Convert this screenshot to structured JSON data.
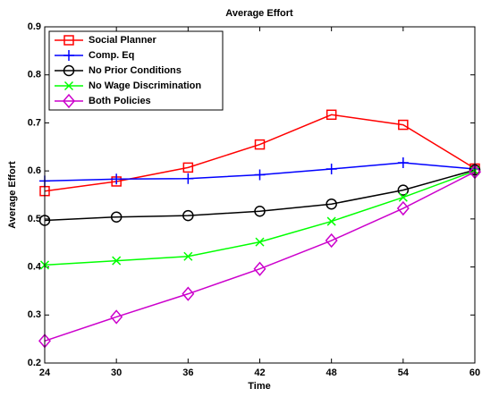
{
  "chart_data": {
    "type": "line",
    "title": "Average Effort",
    "x_label": "Time",
    "y_label": "Average Effort",
    "x": [
      24,
      30,
      36,
      42,
      48,
      54,
      60
    ],
    "xlim": [
      24,
      60
    ],
    "xticks": [
      24,
      30,
      36,
      42,
      48,
      54,
      60
    ],
    "ylim": [
      0.2,
      0.9
    ],
    "yticks": [
      0.2,
      0.3,
      0.4,
      0.5,
      0.6,
      0.7,
      0.8,
      0.9
    ],
    "grid": false,
    "legend": "upper left",
    "series": [
      {
        "name": "Social Planner",
        "color": "#ff0000",
        "marker": "square",
        "values": [
          0.558,
          0.578,
          0.607,
          0.655,
          0.717,
          0.696,
          0.605
        ]
      },
      {
        "name": "Comp. Eq",
        "color": "#0000ff",
        "marker": "plus",
        "values": [
          0.579,
          0.583,
          0.584,
          0.592,
          0.604,
          0.617,
          0.604
        ]
      },
      {
        "name": "No Prior Conditions",
        "color": "#000000",
        "marker": "circle",
        "values": [
          0.497,
          0.504,
          0.507,
          0.516,
          0.531,
          0.56,
          0.602
        ]
      },
      {
        "name": "No Wage Discrimination",
        "color": "#00ff00",
        "marker": "x",
        "values": [
          0.404,
          0.413,
          0.422,
          0.452,
          0.495,
          0.545,
          0.6
        ]
      },
      {
        "name": "Both Policies",
        "color": "#cc00cc",
        "marker": "diamond",
        "values": [
          0.246,
          0.296,
          0.344,
          0.396,
          0.455,
          0.522,
          0.598
        ]
      }
    ]
  }
}
